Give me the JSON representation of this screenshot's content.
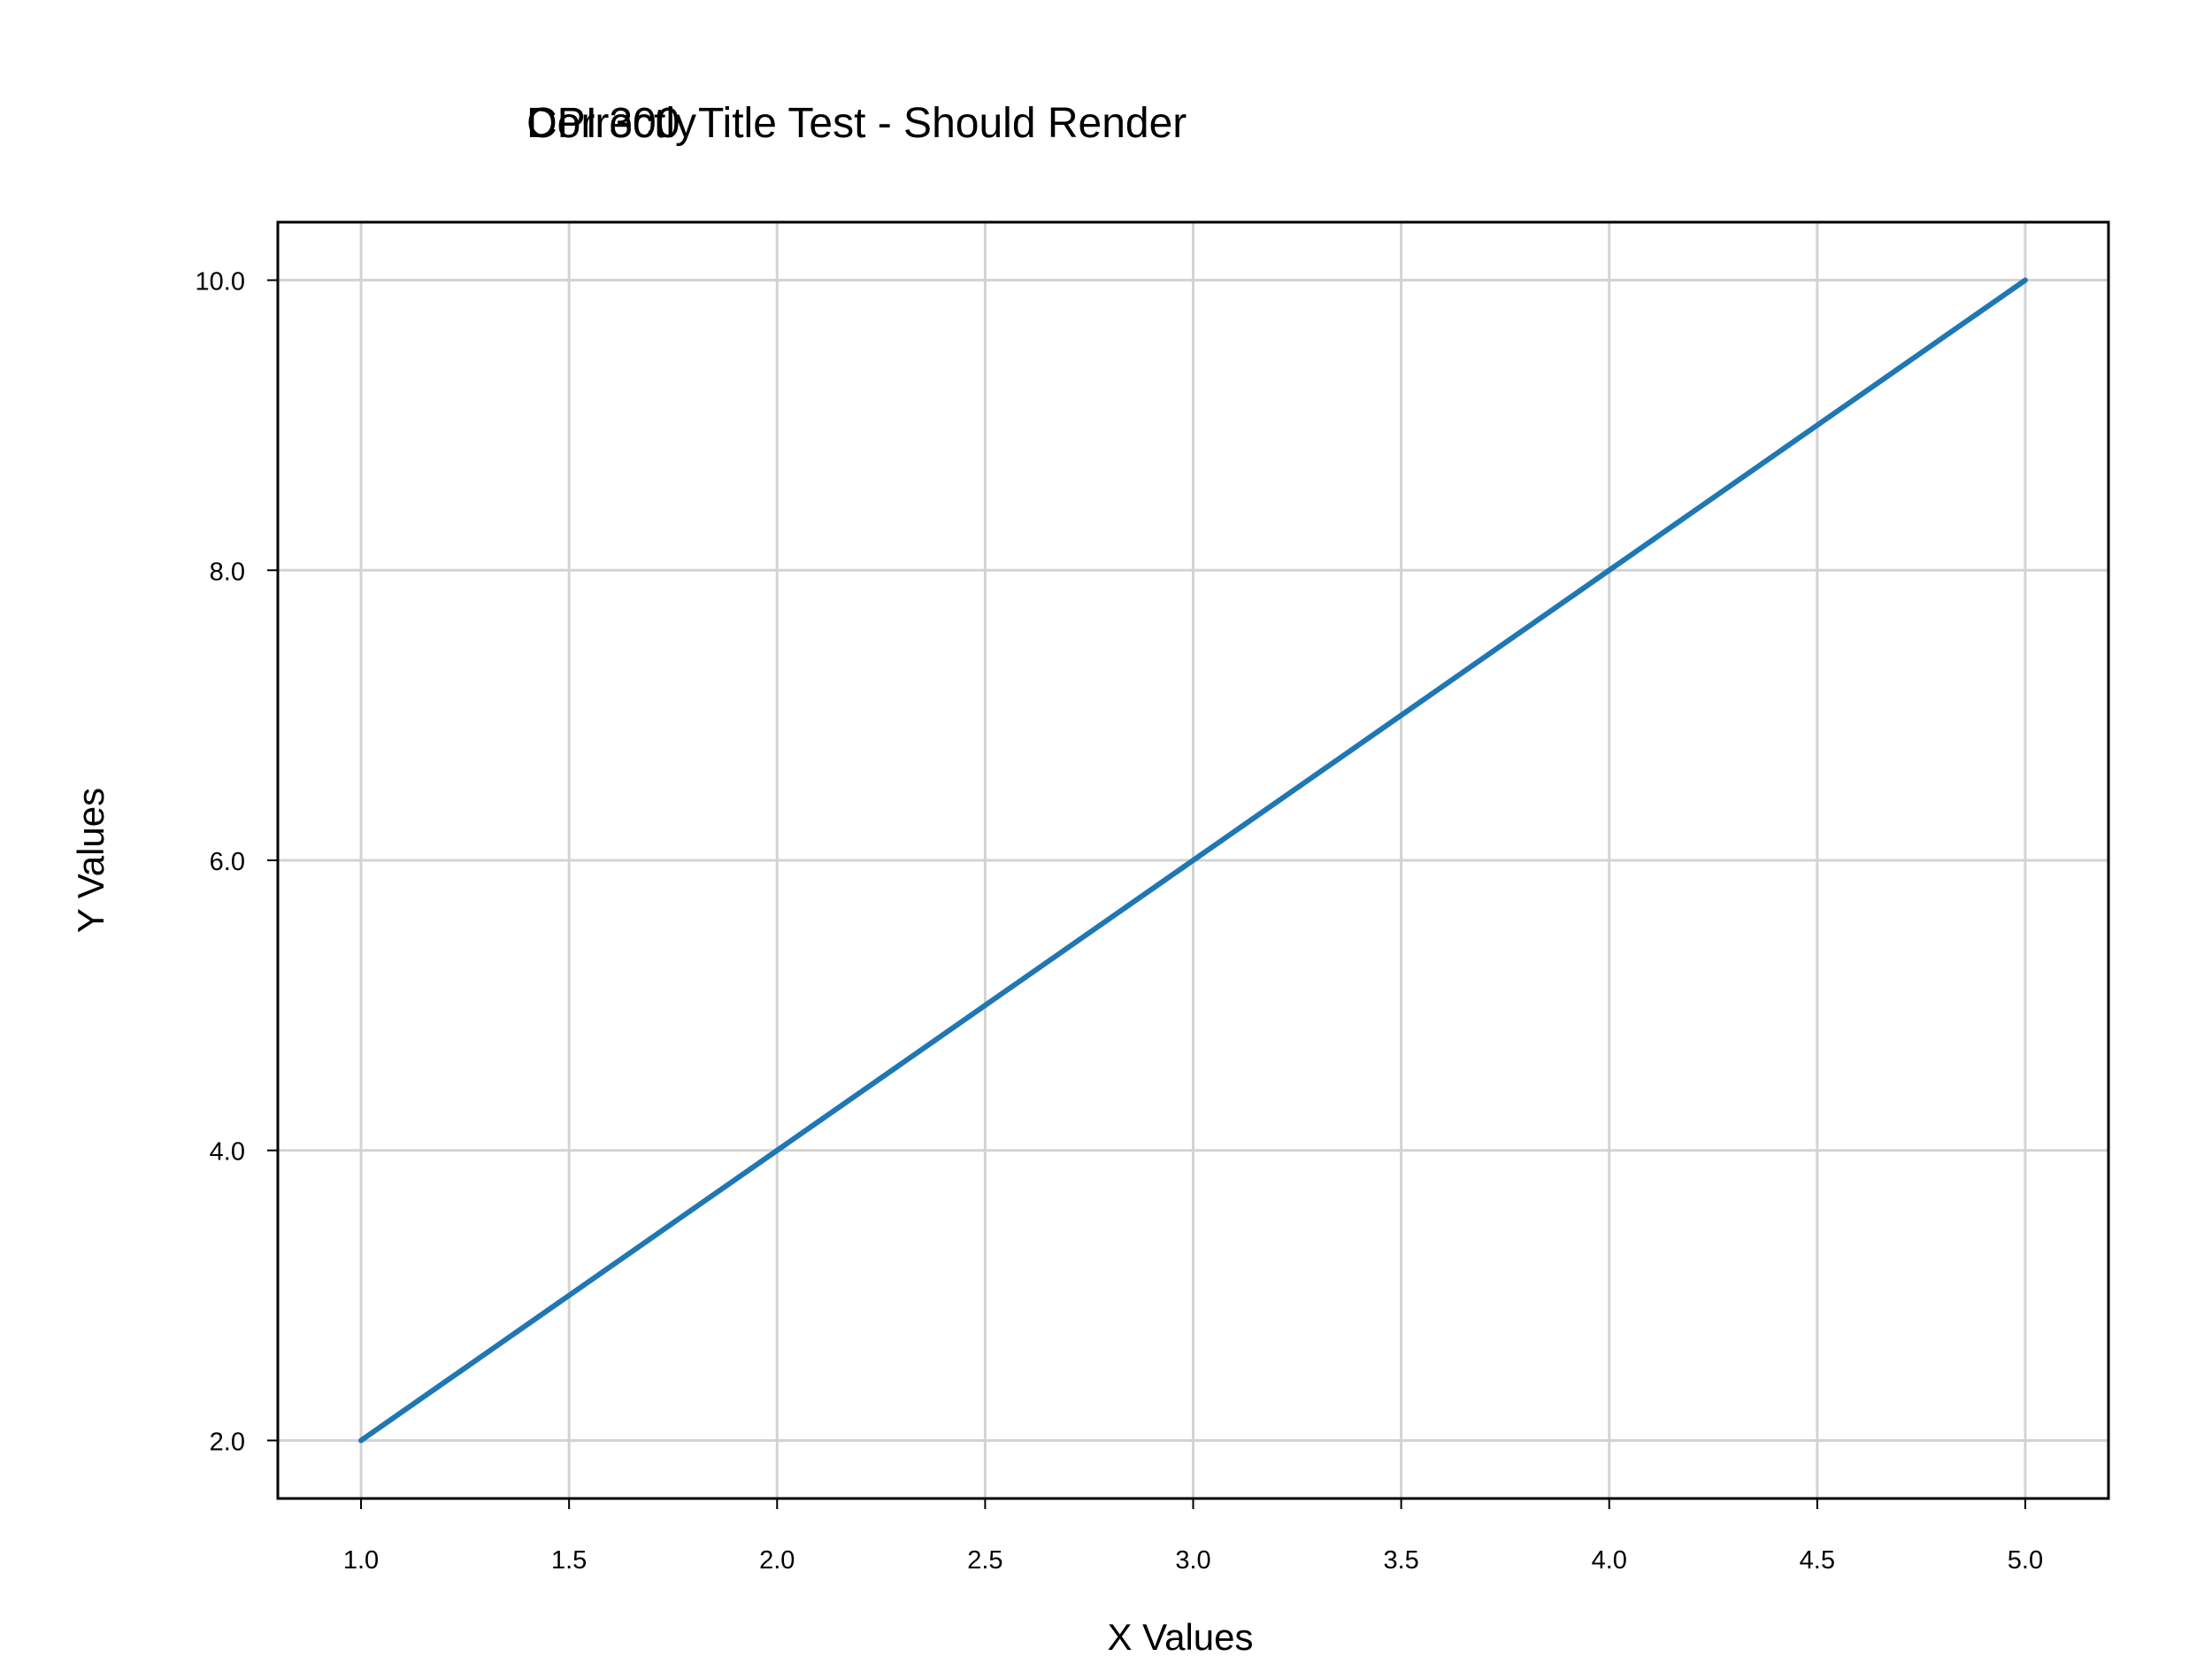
{
  "chart_data": {
    "type": "line",
    "title_overlap": "DPI 300",
    "title": "Title Test - Should Render Correctly",
    "title_overlay_text": "Correctly",
    "xlabel": "X Values",
    "ylabel": "Y Values",
    "xlim": [
      0.8,
      5.2
    ],
    "ylim": [
      1.6,
      10.4
    ],
    "xticks": [
      1.0,
      1.5,
      2.0,
      2.5,
      3.0,
      3.5,
      4.0,
      4.5,
      5.0
    ],
    "xtick_labels": [
      "1.0",
      "1.5",
      "2.0",
      "2.5",
      "3.0",
      "3.5",
      "4.0",
      "4.5",
      "5.0"
    ],
    "yticks": [
      2.0,
      4.0,
      6.0,
      8.0,
      10.0
    ],
    "ytick_labels": [
      "2.0",
      "4.0",
      "6.0",
      "8.0",
      "10.0"
    ],
    "grid": true,
    "series": [
      {
        "x": [
          1.0,
          2.0,
          3.0,
          4.0,
          5.0
        ],
        "y": [
          2.0,
          4.0,
          6.0,
          8.0,
          10.0
        ],
        "color": "#1f77b4"
      }
    ],
    "colors": {
      "grid": "#d3d3d3",
      "axes": "#000000",
      "line": "#1f77b4"
    }
  }
}
